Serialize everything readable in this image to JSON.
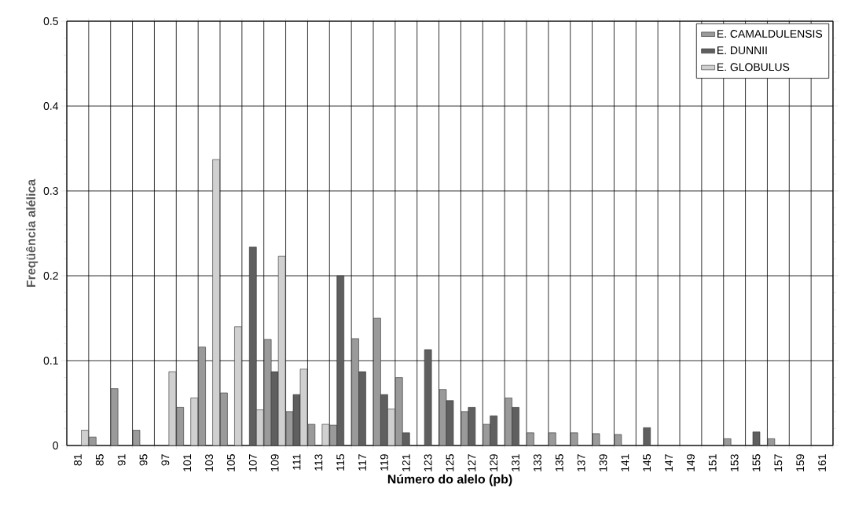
{
  "chart_data": {
    "type": "bar",
    "xlabel": "Número do alelo (pb)",
    "ylabel": "Freqüência alélica",
    "categories": [
      "81",
      "85",
      "91",
      "95",
      "97",
      "101",
      "103",
      "105",
      "107",
      "109",
      "111",
      "113",
      "115",
      "117",
      "119",
      "121",
      "123",
      "125",
      "127",
      "129",
      "131",
      "133",
      "135",
      "137",
      "139",
      "141",
      "145",
      "147",
      "149",
      "151",
      "153",
      "155",
      "157",
      "159",
      "161"
    ],
    "series": [
      {
        "name": "E. CAMALDULENSIS",
        "color": "#9a9a9a",
        "values": [
          null,
          0.01,
          0.067,
          0.018,
          null,
          0.045,
          0.116,
          0.062,
          null,
          0.125,
          0.04,
          0.025,
          0.024,
          0.126,
          0.15,
          0.08,
          null,
          0.066,
          0.04,
          0.025,
          0.056,
          0.015,
          0.015,
          0.015,
          0.014,
          0.013,
          null,
          null,
          null,
          null,
          0.008,
          null,
          0.008,
          null,
          null
        ]
      },
      {
        "name": "E. DUNNII",
        "color": "#5f5f5f",
        "values": [
          null,
          null,
          null,
          null,
          null,
          null,
          null,
          null,
          0.234,
          0.087,
          0.06,
          null,
          0.2,
          0.087,
          0.06,
          0.015,
          0.113,
          0.053,
          0.045,
          0.035,
          0.045,
          null,
          null,
          null,
          null,
          null,
          0.021,
          null,
          null,
          null,
          null,
          0.016,
          null,
          null,
          null
        ]
      },
      {
        "name": "E. GLOBULUS",
        "color": "#d0d0d0",
        "values": [
          0.018,
          null,
          null,
          null,
          0.087,
          0.056,
          0.337,
          0.14,
          0.042,
          0.223,
          0.09,
          0.025,
          null,
          null,
          0.043,
          null,
          null,
          null,
          null,
          null,
          null,
          null,
          null,
          null,
          null,
          null,
          null,
          null,
          null,
          null,
          null,
          null,
          null,
          null,
          null
        ]
      }
    ],
    "ylim": [
      0,
      0.5
    ],
    "yticks": [
      0,
      0.1,
      0.2,
      0.3,
      0.4,
      0.5
    ],
    "grid": true,
    "legend": "top right"
  }
}
